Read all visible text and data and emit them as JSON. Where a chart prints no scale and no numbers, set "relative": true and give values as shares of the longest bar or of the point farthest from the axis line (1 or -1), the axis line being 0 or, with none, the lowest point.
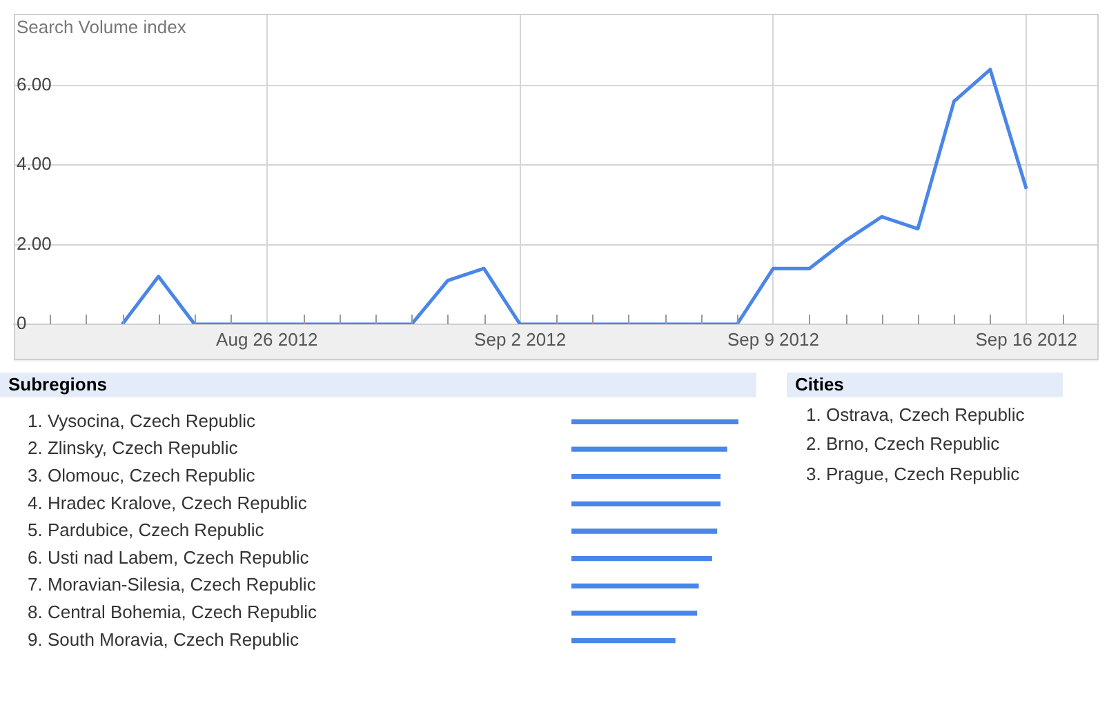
{
  "chart_data": [
    {
      "type": "line",
      "ylabel": "Search Volume index",
      "x": [
        "2012-08-22",
        "2012-08-23",
        "2012-08-24",
        "2012-08-25",
        "2012-08-26",
        "2012-08-27",
        "2012-08-28",
        "2012-08-29",
        "2012-08-30",
        "2012-08-31",
        "2012-09-01",
        "2012-09-02",
        "2012-09-03",
        "2012-09-04",
        "2012-09-05",
        "2012-09-06",
        "2012-09-07",
        "2012-09-08",
        "2012-09-09",
        "2012-09-10",
        "2012-09-11",
        "2012-09-12",
        "2012-09-13",
        "2012-09-14",
        "2012-09-15",
        "2012-09-16"
      ],
      "series": [
        {
          "color": "#4a86e8",
          "values": [
            0,
            1.2,
            0,
            0,
            0,
            0,
            0,
            0,
            0,
            1.1,
            1.4,
            0,
            0,
            0,
            0,
            0,
            0,
            0,
            1.4,
            1.4,
            2.1,
            2.7,
            2.4,
            5.6,
            6.4,
            3.4
          ]
        }
      ],
      "xlim": [
        "2012-08-19",
        "2012-09-18"
      ],
      "xticks": [
        {
          "value": "2012-08-20",
          "label": null
        },
        {
          "value": "2012-08-21",
          "label": null
        },
        {
          "value": "2012-08-22",
          "label": null
        },
        {
          "value": "2012-08-23",
          "label": null
        },
        {
          "value": "2012-08-24",
          "label": null
        },
        {
          "value": "2012-08-25",
          "label": null
        },
        {
          "value": "2012-08-26",
          "label": "Aug 26 2012"
        },
        {
          "value": "2012-08-27",
          "label": null
        },
        {
          "value": "2012-08-28",
          "label": null
        },
        {
          "value": "2012-08-29",
          "label": null
        },
        {
          "value": "2012-08-30",
          "label": null
        },
        {
          "value": "2012-08-31",
          "label": null
        },
        {
          "value": "2012-09-01",
          "label": null
        },
        {
          "value": "2012-09-02",
          "label": "Sep 2 2012"
        },
        {
          "value": "2012-09-03",
          "label": null
        },
        {
          "value": "2012-09-04",
          "label": null
        },
        {
          "value": "2012-09-05",
          "label": null
        },
        {
          "value": "2012-09-06",
          "label": null
        },
        {
          "value": "2012-09-07",
          "label": null
        },
        {
          "value": "2012-09-08",
          "label": null
        },
        {
          "value": "2012-09-09",
          "label": "Sep 9 2012"
        },
        {
          "value": "2012-09-10",
          "label": null
        },
        {
          "value": "2012-09-11",
          "label": null
        },
        {
          "value": "2012-09-12",
          "label": null
        },
        {
          "value": "2012-09-13",
          "label": null
        },
        {
          "value": "2012-09-14",
          "label": null
        },
        {
          "value": "2012-09-15",
          "label": null
        },
        {
          "value": "2012-09-16",
          "label": "Sep 16 2012"
        },
        {
          "value": "2012-09-17",
          "label": null
        }
      ],
      "ylim": [
        0,
        7.8
      ],
      "yticks": [
        {
          "value": 0,
          "label": "0"
        },
        {
          "value": 2,
          "label": "2.00"
        },
        {
          "value": 4,
          "label": "4.00"
        },
        {
          "value": 6,
          "label": "6.00"
        }
      ],
      "grid": true,
      "marker": "none",
      "line_style": "solid"
    },
    {
      "type": "bar",
      "orientation": "horizontal",
      "relative": true,
      "title": "Subregions",
      "categories": [
        "1. Vysocina, Czech Republic",
        "2. Zlinsky, Czech Republic",
        "3. Olomouc, Czech Republic",
        "4. Hradec Kralove, Czech Republic",
        "5. Pardubice, Czech Republic",
        "6. Usti nad Labem, Czech Republic",
        "7. Moravian-Silesia, Czech Republic",
        "8. Central Bohemia, Czech Republic",
        "9. South Moravia, Czech Republic"
      ],
      "values": [
        1,
        0.93,
        0.89,
        0.89,
        0.87,
        0.84,
        0.76,
        0.75,
        0.62
      ],
      "color": "#4a86e8"
    },
    {
      "type": "other",
      "title": "Cities",
      "annotations": [
        "1. Ostrava, Czech Republic",
        "2. Brno, Czech Republic",
        "3. Prague, Czech Republic"
      ]
    }
  ]
}
